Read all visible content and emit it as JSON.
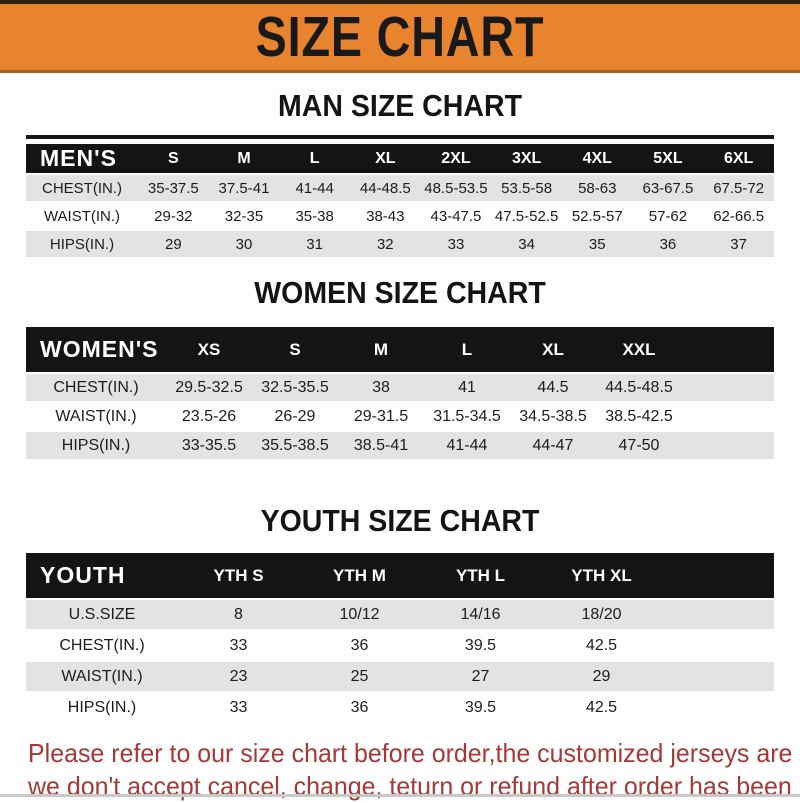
{
  "banner": {
    "title": "SIZE CHART"
  },
  "sections": [
    {
      "heading": "MAN SIZE CHART",
      "table": {
        "label": "MEN'S",
        "columns": [
          "S",
          "M",
          "L",
          "XL",
          "2XL",
          "3XL",
          "4XL",
          "5XL",
          "6XL"
        ],
        "rows": [
          {
            "label": "CHEST(IN.)",
            "values": [
              "35-37.5",
              "37.5-41",
              "41-44",
              "44-48.5",
              "48.5-53.5",
              "53.5-58",
              "58-63",
              "63-67.5",
              "67.5-72"
            ]
          },
          {
            "label": "WAIST(IN.)",
            "values": [
              "29-32",
              "32-35",
              "35-38",
              "38-43",
              "43-47.5",
              "47.5-52.5",
              "52.5-57",
              "57-62",
              "62-66.5"
            ]
          },
          {
            "label": "HIPS(IN.)",
            "values": [
              "29",
              "30",
              "31",
              "32",
              "33",
              "34",
              "35",
              "36",
              "37"
            ]
          }
        ]
      }
    },
    {
      "heading": "WOMEN SIZE CHART",
      "table": {
        "label": "WOMEN'S",
        "columns": [
          "XS",
          "S",
          "M",
          "L",
          "XL",
          "XXL"
        ],
        "rows": [
          {
            "label": "CHEST(IN.)",
            "values": [
              "29.5-32.5",
              "32.5-35.5",
              "38",
              "41",
              "44.5",
              "44.5-48.5"
            ]
          },
          {
            "label": "WAIST(IN.)",
            "values": [
              "23.5-26",
              "26-29",
              "29-31.5",
              "31.5-34.5",
              "34.5-38.5",
              "38.5-42.5"
            ]
          },
          {
            "label": "HIPS(IN.)",
            "values": [
              "33-35.5",
              "35.5-38.5",
              "38.5-41",
              "41-44",
              "44-47",
              "47-50"
            ]
          }
        ]
      }
    },
    {
      "heading": "YOUTH SIZE CHART",
      "table": {
        "label": "YOUTH",
        "columns": [
          "YTH S",
          "YTH M",
          "YTH L",
          "YTH XL"
        ],
        "rows": [
          {
            "label": "U.S.SIZE",
            "values": [
              "8",
              "10/12",
              "14/16",
              "18/20"
            ]
          },
          {
            "label": "CHEST(IN.)",
            "values": [
              "33",
              "36",
              "39.5",
              "42.5"
            ]
          },
          {
            "label": "WAIST(IN.)",
            "values": [
              "23",
              "25",
              "27",
              "29"
            ]
          },
          {
            "label": "HIPS(IN.)",
            "values": [
              "33",
              "36",
              "39.5",
              "42.5"
            ]
          }
        ]
      }
    }
  ],
  "footer": {
    "line1": "Please refer to our size chart before order,the customized jerseys are special products,",
    "line2": "we don't accept cancel, change, teturn or refund after order has been placed!"
  },
  "colors": {
    "banner_bg": "#E8842D",
    "header_bg": "#141414",
    "row_alt_bg": "#E3E3E3",
    "footer_text": "#A43937"
  }
}
